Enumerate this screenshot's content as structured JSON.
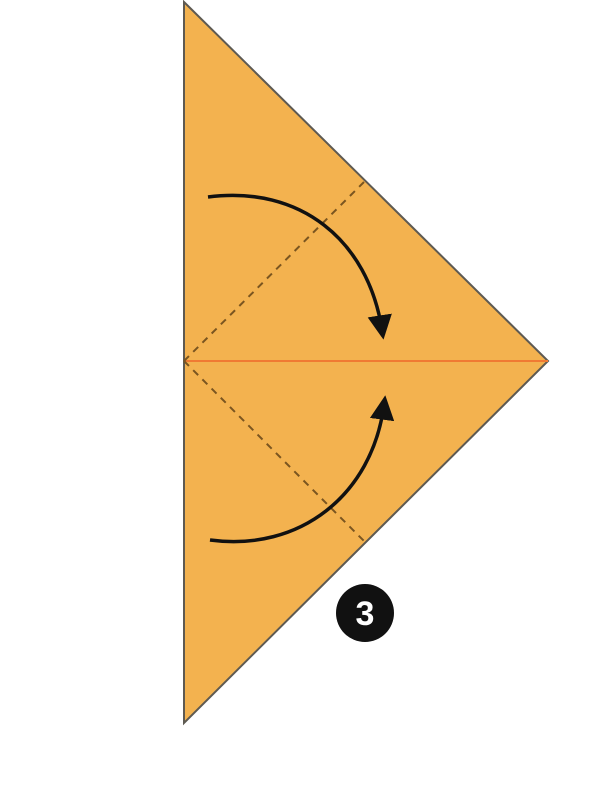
{
  "diagram": {
    "step_number": "3",
    "colors": {
      "paper": "#F3B24F",
      "paper_edge": "#5E5A52",
      "center_crease": "#F07A33",
      "fold_line": "#7A5520",
      "arrow": "#111111",
      "badge": "#111111",
      "badge_text": "#ffffff"
    },
    "icons": {
      "upper_fold": "curved-arrow-down-icon",
      "lower_fold": "curved-arrow-up-icon"
    }
  }
}
